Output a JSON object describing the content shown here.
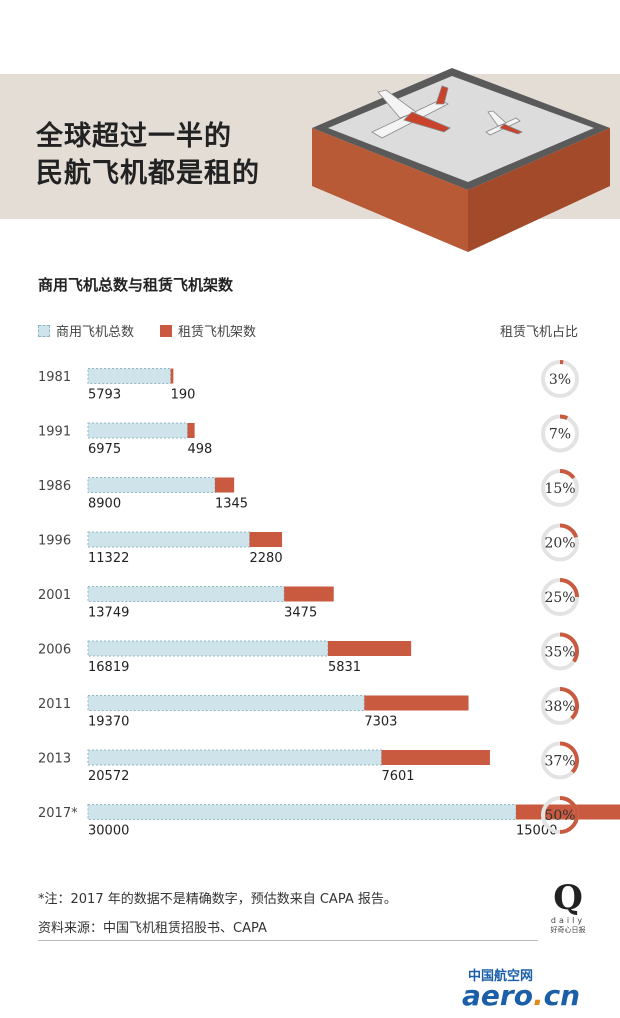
{
  "hero": {
    "title_line1": "全球超过一半的",
    "title_line2": "民航飞机都是租的"
  },
  "subtitle": "商用飞机总数与租赁飞机架数",
  "legend": {
    "total_label": "商用飞机总数",
    "lease_label": "租赁飞机架数",
    "ratio_label": "租赁飞机占比"
  },
  "colors": {
    "total_fill": "#cfe3ea",
    "total_stroke": "#8fb7c6",
    "lease": "#c95a3f",
    "ring_track": "#e3e3e3"
  },
  "chart_data": {
    "type": "bar",
    "categories": [
      "1981",
      "1991",
      "1986",
      "1996",
      "2001",
      "2006",
      "2011",
      "2013",
      "2017*"
    ],
    "series": [
      {
        "name": "商用飞机总数",
        "values": [
          5793,
          6975,
          8900,
          11322,
          13749,
          16819,
          19370,
          20572,
          30000
        ]
      },
      {
        "name": "租赁飞机架数",
        "values": [
          190,
          498,
          1345,
          2280,
          3475,
          5831,
          7303,
          7601,
          15000
        ]
      },
      {
        "name": "租赁飞机占比",
        "values": [
          3,
          7,
          15,
          20,
          25,
          35,
          38,
          37,
          50
        ],
        "unit": "%"
      }
    ],
    "title": "商用飞机总数与租赁飞机架数",
    "xlabel": "",
    "ylabel": "",
    "legend_position": "top-left",
    "grid": false
  },
  "footnote": "*注：2017 年的数据不是精确数字，预估数来自 CAPA 报告。",
  "source": "资料来源：中国飞机租赁招股书、CAPA",
  "logo": {
    "letter": "Q",
    "word": "daily",
    "cn": "好奇心日报"
  },
  "watermark": {
    "cn": "中国航空网",
    "en_main": "aero",
    "en_dot": ".",
    "en_tld": "cn"
  }
}
